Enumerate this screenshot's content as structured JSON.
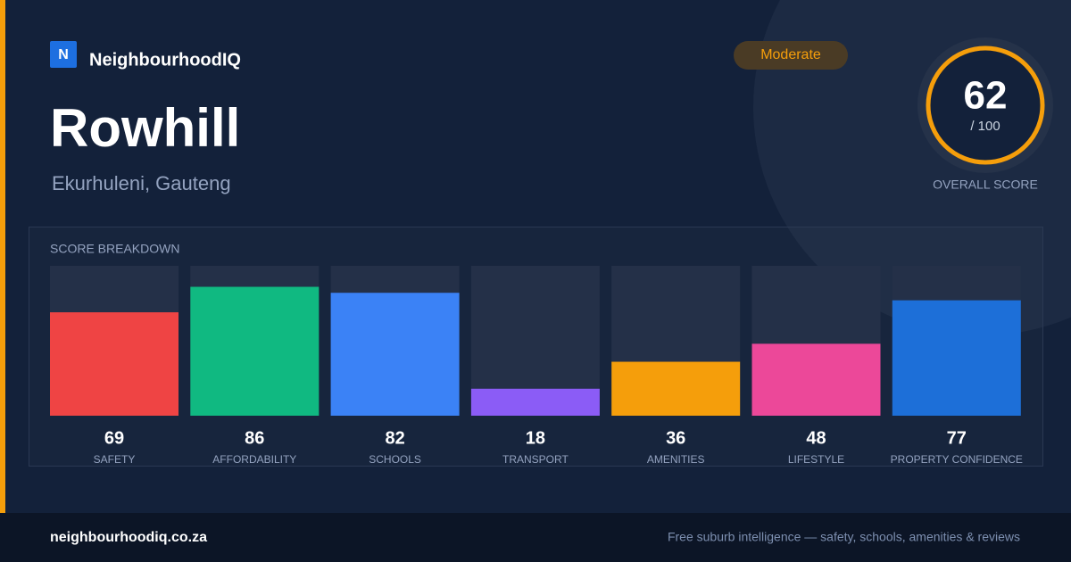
{
  "brand": {
    "logo": "N",
    "name": "NeighbourhoodIQ"
  },
  "suburb": "Rowhill",
  "location": "Ekurhuleni, Gauteng",
  "badge": "Moderate",
  "overall": {
    "score": "62",
    "out_of": "/ 100",
    "label": "OVERALL SCORE"
  },
  "chart_data": {
    "type": "bar",
    "title": "SCORE BREAKDOWN",
    "categories": [
      "SAFETY",
      "AFFORDABILITY",
      "SCHOOLS",
      "TRANSPORT",
      "AMENITIES",
      "LIFESTYLE",
      "PROPERTY CONFIDENCE"
    ],
    "values": [
      69,
      86,
      82,
      18,
      36,
      48,
      77
    ],
    "colors": [
      "#ef4444",
      "#10b981",
      "#3b82f6",
      "#8b5cf6",
      "#f59e0b",
      "#ec4899",
      "#1d6fd8"
    ],
    "ylim": [
      0,
      100
    ]
  },
  "footer": {
    "url": "neighbourhoodiq.co.za",
    "tagline": "Free suburb intelligence — safety, schools, amenities & reviews"
  }
}
